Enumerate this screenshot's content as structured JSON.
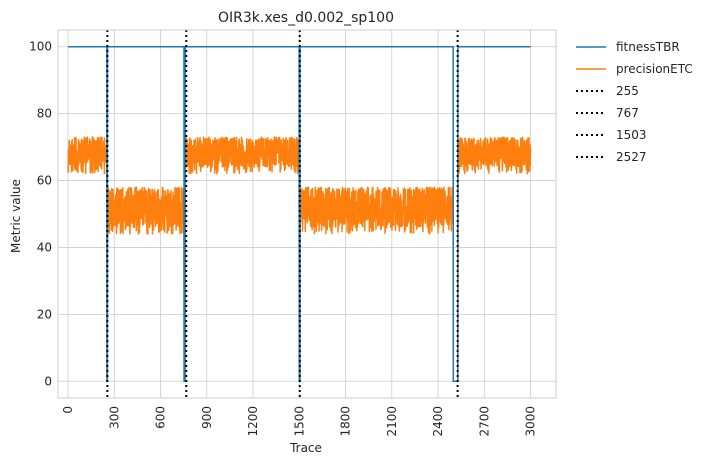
{
  "chart_data": {
    "type": "line",
    "title": "OIR3k.xes_d0.002_sp100",
    "xlabel": "Trace",
    "ylabel": "Metric value",
    "xlim": [
      -65,
      3165
    ],
    "ylim": [
      -5,
      105
    ],
    "xticks": [
      0,
      300,
      600,
      900,
      1200,
      1500,
      1800,
      2100,
      2400,
      2700,
      3000
    ],
    "yticks": [
      0,
      20,
      40,
      60,
      80,
      100
    ],
    "grid": true,
    "legend_position": "outside-top-right",
    "colors": {
      "fitnessTBR": "#1f77b4",
      "precisionETC": "#ff7f0e",
      "drift": "#000000",
      "grid": "#cccccc"
    },
    "series": [
      {
        "name": "fitnessTBR",
        "x": [
          0,
          252,
          253,
          255,
          256,
          752,
          753,
          759,
          760,
          1499,
          1500,
          1504,
          1505,
          2498,
          2499,
          2528,
          2529,
          3000
        ],
        "values": [
          100,
          100,
          0,
          0,
          100,
          100,
          0,
          0,
          100,
          100,
          0,
          0,
          100,
          100,
          0,
          0,
          100,
          100
        ]
      },
      {
        "name": "precisionETC",
        "segments": [
          {
            "x_start": 0,
            "x_end": 252,
            "low": 62,
            "high": 73
          },
          {
            "x_start": 253,
            "x_end": 255,
            "low": 0,
            "high": 0
          },
          {
            "x_start": 256,
            "x_end": 752,
            "low": 44,
            "high": 58
          },
          {
            "x_start": 753,
            "x_end": 759,
            "low": 0,
            "high": 0
          },
          {
            "x_start": 760,
            "x_end": 1499,
            "low": 62,
            "high": 73
          },
          {
            "x_start": 1500,
            "x_end": 1504,
            "low": 0,
            "high": 0
          },
          {
            "x_start": 1505,
            "x_end": 2498,
            "low": 44,
            "high": 58
          },
          {
            "x_start": 2499,
            "x_end": 2528,
            "low": 0,
            "high": 0
          },
          {
            "x_start": 2529,
            "x_end": 3000,
            "low": 62,
            "high": 73
          }
        ]
      }
    ],
    "vlines": [
      {
        "label": "255",
        "x": 255
      },
      {
        "label": "767",
        "x": 767
      },
      {
        "label": "1503",
        "x": 1503
      },
      {
        "label": "2527",
        "x": 2527
      }
    ],
    "legend": [
      "fitnessTBR",
      "precisionETC",
      "255",
      "767",
      "1503",
      "2527"
    ]
  }
}
